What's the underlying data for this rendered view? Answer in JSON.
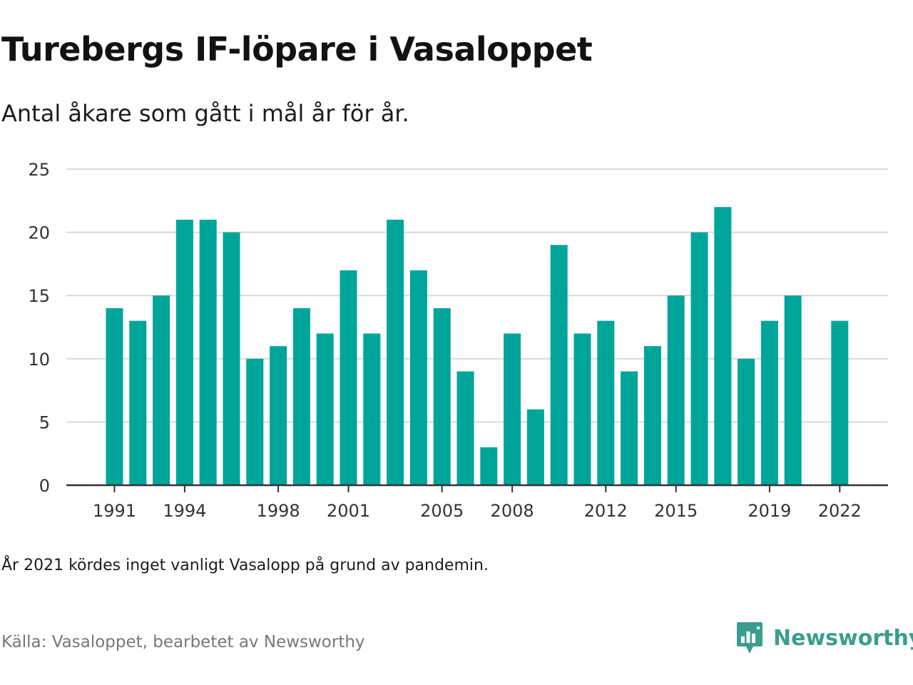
{
  "header": {
    "title": "Turebergs IF-löpare i Vasaloppet",
    "subtitle": "Antal åkare som gått i mål år för år."
  },
  "footer": {
    "note": "År 2021 kördes inget vanligt Vasalopp på grund av pandemin.",
    "source": "Källa: Vasaloppet, bearbetet av Newsworthy",
    "brand": "Newsworthy",
    "brand_icon": "newsworthy-logo-icon"
  },
  "colors": {
    "bar": "#00a59a",
    "grid": "#d9d9d9",
    "axis": "#333333",
    "brand": "#3a9e8f"
  },
  "chart_data": {
    "type": "bar",
    "title": "Turebergs IF-löpare i Vasaloppet",
    "subtitle": "Antal åkare som gått i mål år för år.",
    "xlabel": "",
    "ylabel": "",
    "ylim": [
      0,
      25
    ],
    "yticks": [
      0,
      5,
      10,
      15,
      20,
      25
    ],
    "xtick_labels": [
      "1991",
      "1994",
      "1998",
      "2001",
      "2005",
      "2008",
      "2012",
      "2015",
      "2019",
      "2022"
    ],
    "grid": true,
    "legend": "none",
    "categories": [
      "1991",
      "1992",
      "1993",
      "1994",
      "1995",
      "1996",
      "1997",
      "1998",
      "1999",
      "2000",
      "2001",
      "2002",
      "2003",
      "2004",
      "2005",
      "2006",
      "2007",
      "2008",
      "2009",
      "2010",
      "2011",
      "2012",
      "2013",
      "2014",
      "2015",
      "2016",
      "2017",
      "2018",
      "2019",
      "2020",
      "2021",
      "2022"
    ],
    "values": [
      14,
      13,
      15,
      21,
      21,
      20,
      10,
      11,
      14,
      12,
      17,
      12,
      21,
      17,
      14,
      9,
      3,
      12,
      6,
      19,
      12,
      13,
      9,
      11,
      15,
      20,
      22,
      10,
      13,
      15,
      null,
      13
    ]
  }
}
